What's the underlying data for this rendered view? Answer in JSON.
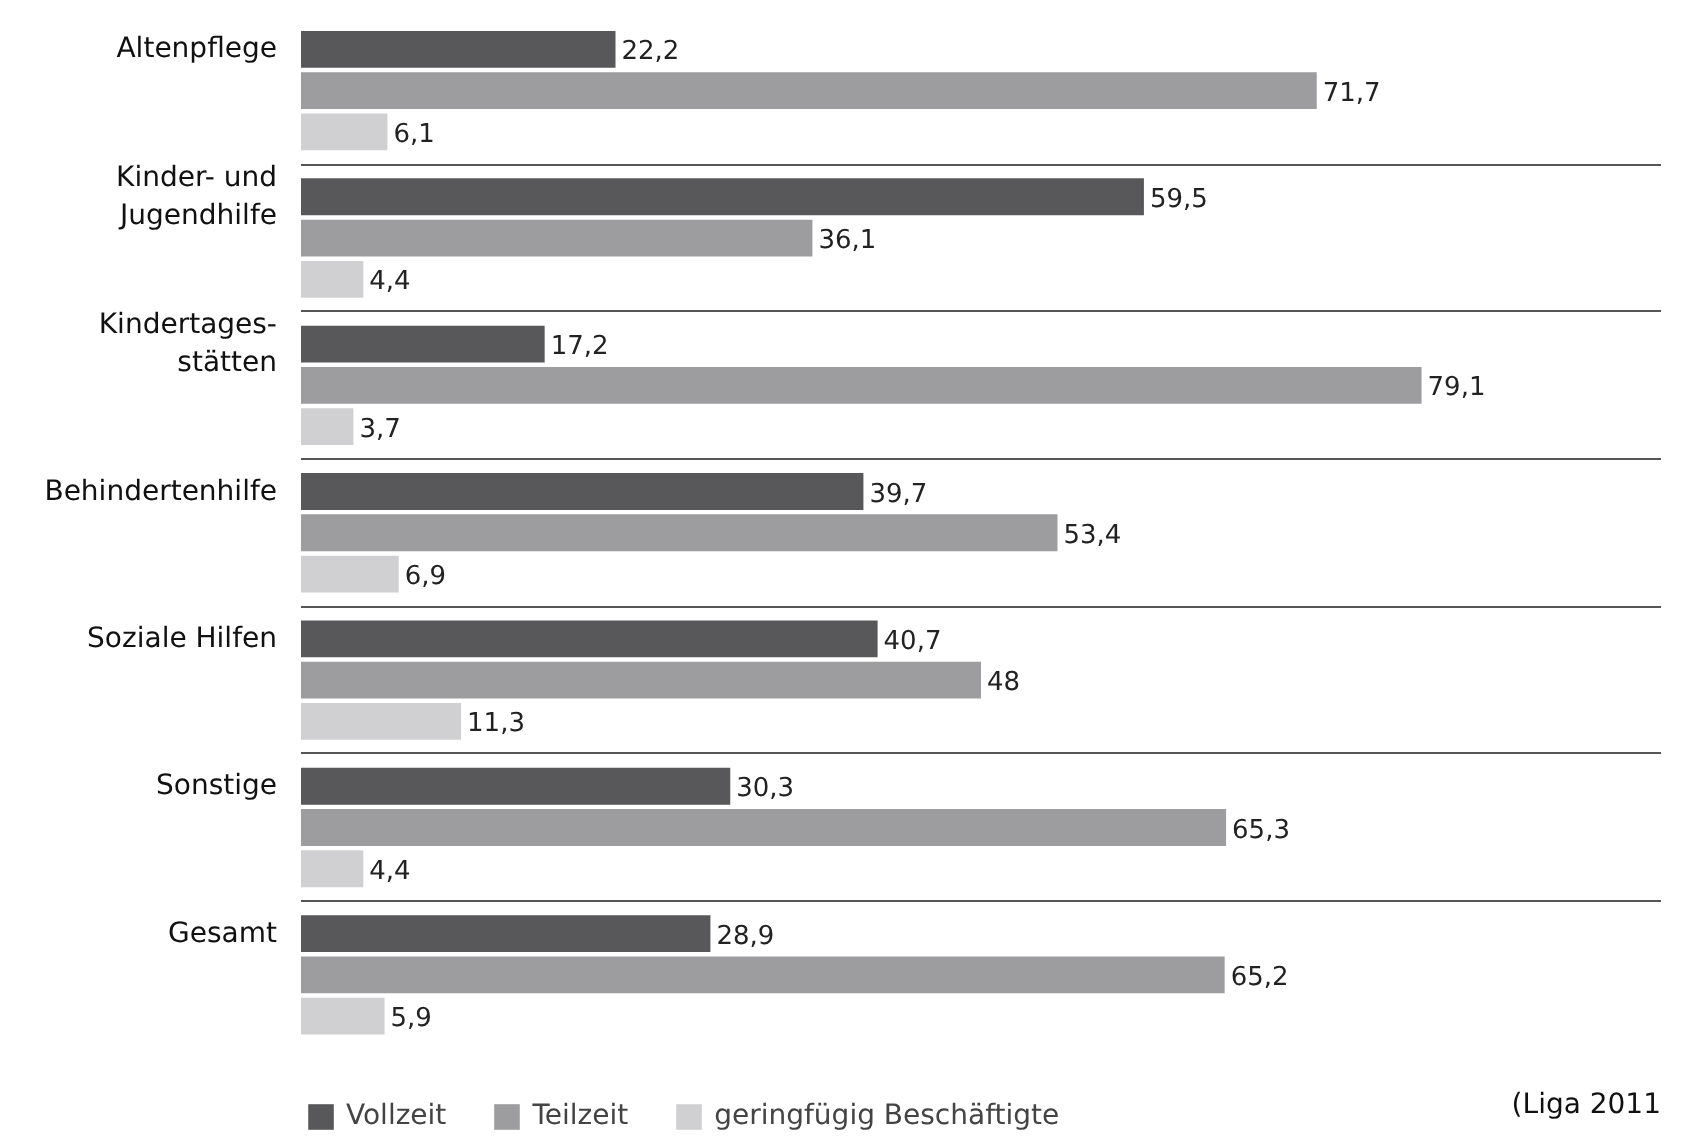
{
  "chart_data": {
    "type": "bar",
    "orientation": "horizontal",
    "categories": [
      "Altenpflege",
      "Kinder- und\nJugendhilfe",
      "Kindertages-\nstätten",
      "Behindertenhilfe",
      "Soziale Hilfen",
      "Sonstige",
      "Gesamt"
    ],
    "series": [
      {
        "name": "Vollzeit",
        "color": "#58585a",
        "values": [
          22.2,
          59.5,
          17.2,
          39.7,
          40.7,
          30.3,
          28.9
        ],
        "value_labels": [
          "22,2",
          "59,5",
          "17,2",
          "39,7",
          "40,7",
          "30,3",
          "28,9"
        ]
      },
      {
        "name": "Teilzeit",
        "color": "#9d9d9f",
        "values": [
          71.7,
          36.1,
          79.1,
          53.4,
          48,
          65.3,
          65.2
        ],
        "value_labels": [
          "71,7",
          "36,1",
          "79,1",
          "53,4",
          "48",
          "65,3",
          "65,2"
        ]
      },
      {
        "name": "geringfügig Beschäftigte",
        "color": "#d0d0d2",
        "values": [
          6.1,
          4.4,
          3.7,
          6.9,
          11.3,
          4.4,
          5.9
        ],
        "value_labels": [
          "6,1",
          "4,4",
          "3,7",
          "6,9",
          "11,3",
          "4,4",
          "5,9"
        ]
      }
    ],
    "xlim": [
      0,
      96
    ],
    "grid": "y",
    "legend": "bottom",
    "tick_labels": "y",
    "annotations": [
      "(Liga 2011"
    ]
  }
}
